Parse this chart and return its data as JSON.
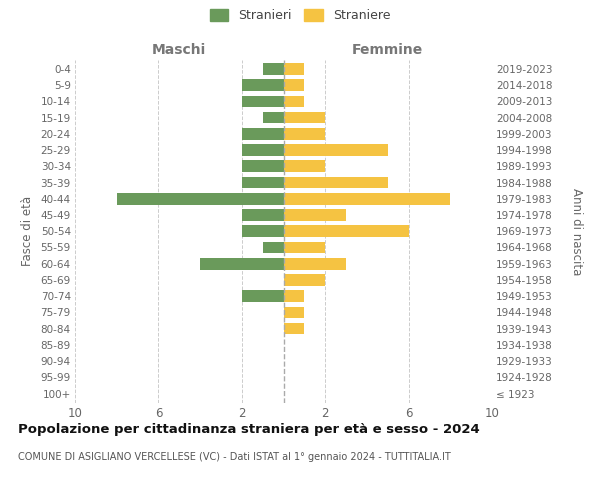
{
  "age_groups": [
    "100+",
    "95-99",
    "90-94",
    "85-89",
    "80-84",
    "75-79",
    "70-74",
    "65-69",
    "60-64",
    "55-59",
    "50-54",
    "45-49",
    "40-44",
    "35-39",
    "30-34",
    "25-29",
    "20-24",
    "15-19",
    "10-14",
    "5-9",
    "0-4"
  ],
  "birth_years": [
    "≤ 1923",
    "1924-1928",
    "1929-1933",
    "1934-1938",
    "1939-1943",
    "1944-1948",
    "1949-1953",
    "1954-1958",
    "1959-1963",
    "1964-1968",
    "1969-1973",
    "1974-1978",
    "1979-1983",
    "1984-1988",
    "1989-1993",
    "1994-1998",
    "1999-2003",
    "2004-2008",
    "2009-2013",
    "2014-2018",
    "2019-2023"
  ],
  "maschi": [
    0,
    0,
    0,
    0,
    0,
    0,
    2,
    0,
    4,
    1,
    2,
    2,
    8,
    2,
    2,
    2,
    2,
    1,
    2,
    2,
    1
  ],
  "femmine": [
    0,
    0,
    0,
    0,
    1,
    1,
    1,
    2,
    3,
    2,
    6,
    3,
    8,
    5,
    2,
    5,
    2,
    2,
    1,
    1,
    1
  ],
  "maschi_color": "#6a9a5b",
  "femmine_color": "#f5c342",
  "background_color": "#ffffff",
  "grid_color": "#cccccc",
  "title": "Popolazione per cittadinanza straniera per età e sesso - 2024",
  "subtitle": "COMUNE DI ASIGLIANO VERCELLESE (VC) - Dati ISTAT al 1° gennaio 2024 - TUTTITALIA.IT",
  "xlabel_left": "Maschi",
  "xlabel_right": "Femmine",
  "ylabel_left": "Fasce di età",
  "ylabel_right": "Anni di nascita",
  "legend_maschi": "Stranieri",
  "legend_femmine": "Straniere",
  "xlim": 10,
  "dashed_line_color": "#aaaaaa"
}
